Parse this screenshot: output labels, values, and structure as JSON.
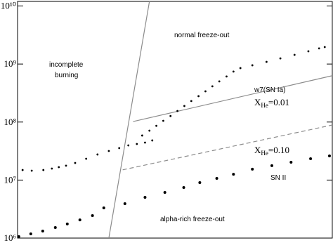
{
  "chart_data": {
    "type": "scatter",
    "log_y": true,
    "xlim": [
      0,
      100
    ],
    "ylim": [
      1000000,
      12000000000
    ],
    "yticks": [
      {
        "value": 1000000,
        "label": "10⁶"
      },
      {
        "value": 10000000,
        "label": "10⁷"
      },
      {
        "value": 100000000,
        "label": "10⁸"
      },
      {
        "value": 1000000000,
        "label": "10⁹"
      },
      {
        "value": 10000000000,
        "label": "10¹⁰"
      }
    ],
    "series": [
      {
        "color": "#000000",
        "marker": "small",
        "x": [
          1.6,
          4.5,
          8.2,
          10.9,
          13.1,
          15.4,
          18.3,
          21.8,
          25.4,
          29.0,
          32.3,
          35.2,
          37.9,
          40.5,
          42.8,
          39.6,
          41.9,
          44.1,
          46.3,
          48.6,
          50.8,
          53.0,
          55.2,
          57.5,
          59.7,
          61.9,
          64.1,
          66.4,
          68.6,
          70.8,
          74.6,
          79.1,
          83.5,
          88.0,
          92.4,
          95.8,
          97.6
        ],
        "values": [
          14900000,
          14500000,
          14900000,
          15800000,
          16700000,
          17700000,
          19700000,
          23300000,
          27600000,
          31700000,
          35500000,
          39600000,
          41900000,
          44300000,
          48200000,
          58600000,
          71000000,
          86000000,
          105000000,
          127000000,
          155000000,
          189000000,
          230000000,
          279000000,
          339000000,
          413000000,
          502000000,
          610000000,
          741000000,
          851000000,
          951000000,
          1090000000,
          1250000000,
          1440000000,
          1660000000,
          1860000000,
          1960000000
        ]
      },
      {
        "color": "#000000",
        "marker": "large",
        "x": [
          0.4,
          4.2,
          8.0,
          12.0,
          15.8,
          19.8,
          23.8,
          27.4,
          34.1,
          40.5,
          46.8,
          52.8,
          57.9,
          63.3,
          68.6,
          74.6,
          80.8,
          86.9,
          93.1,
          99.1
        ],
        "values": [
          1060000,
          1180000,
          1320000,
          1520000,
          1750000,
          2060000,
          2440000,
          3320000,
          3920000,
          5040000,
          6120000,
          7450000,
          9040000,
          10700000,
          12600000,
          15400000,
          17700000,
          20300000,
          23300000,
          26100000
        ]
      }
    ],
    "lines": [
      {
        "x": [
          29.0,
          41.9
        ],
        "y": [
          1000000,
          12000000000
        ],
        "dashed": false,
        "color": "#8c8c8c"
      },
      {
        "x": [
          36.7,
          100
        ],
        "y": [
          102000000,
          630000000
        ],
        "dashed": false,
        "color": "#8c8c8c"
      },
      {
        "x": [
          33.4,
          100
        ],
        "y": [
          15000000,
          89000000
        ],
        "dashed": true,
        "color": "#8c8c8c"
      }
    ],
    "annotations": [
      "incomplete",
      "burning",
      "normal freeze-out",
      "w7(SN Ia)",
      {
        "main": "X",
        "sub": "He",
        "tail": "=0.01"
      },
      {
        "main": "X",
        "sub": "He",
        "tail": "=0.10"
      },
      "SN II",
      "alpha-rich freeze-out"
    ]
  }
}
